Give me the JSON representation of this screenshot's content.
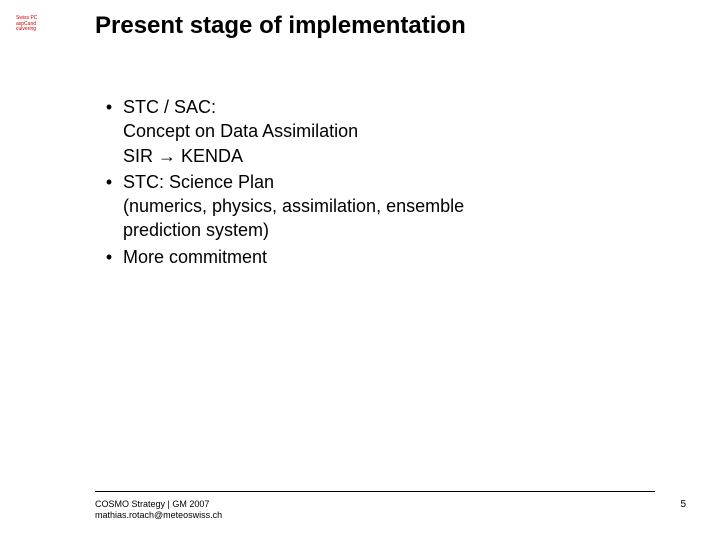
{
  "colors": {
    "background": "#ffffff",
    "text": "#000000",
    "logo_text": "#cc0000",
    "rule": "#000000"
  },
  "typography": {
    "title_fontsize_pt": 18,
    "body_fontsize_pt": 14,
    "footer_fontsize_pt": 7,
    "font_family": "Arial"
  },
  "logo": {
    "line1": "Swiss PC",
    "line2": "aspCand",
    "line3": "culvering"
  },
  "title": "Present stage of implementation",
  "bullets": [
    {
      "marker": "•",
      "lines": [
        "STC / SAC:",
        "Concept on Data Assimilation",
        "SIR → KENDA"
      ]
    },
    {
      "marker": "•",
      "lines": [
        "STC: Science Plan",
        "(numerics, physics, assimilation, ensemble",
        " prediction  system)"
      ]
    },
    {
      "marker": "•",
      "lines": [
        "More commitment"
      ]
    }
  ],
  "footer": {
    "left_line1": "COSMO Strategy | GM 2007",
    "left_line2": "mathias.rotach@meteoswiss.ch",
    "page_number": "5"
  }
}
